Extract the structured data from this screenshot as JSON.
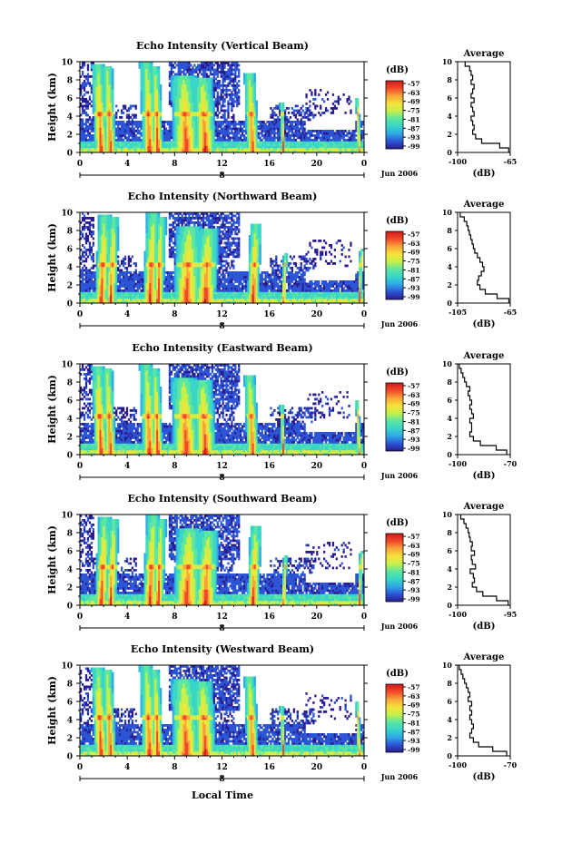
{
  "figure": {
    "xlabel_bottom": "Local Time",
    "date_label": "Jun 2006",
    "colorbar_unit": "(dB)",
    "colorbar_ticks": [
      "-57",
      "-63",
      "-69",
      "-75",
      "-81",
      "-87",
      "-93",
      "-99"
    ],
    "colormap": [
      "#2a1b8f",
      "#2c55d6",
      "#2fa9e6",
      "#39d6c8",
      "#5de6a0",
      "#c8f04a",
      "#f6e23a",
      "#f9a43a",
      "#f1482a",
      "#d01a1a"
    ]
  },
  "chart_data": [
    {
      "type": "heatmap",
      "title": "Echo Intensity (Vertical Beam)",
      "ylabel": "Height (km)",
      "ylim": [
        0,
        10
      ],
      "xlim": [
        0,
        24
      ],
      "x_ticks": [
        "0",
        "4",
        "8",
        "12",
        "16",
        "20",
        "0"
      ],
      "date_tick": "8",
      "y_ticks": [
        "0",
        "2",
        "4",
        "6",
        "8",
        "10"
      ],
      "profile": {
        "title": "Average",
        "xlabel": "(dB)",
        "xlim": [
          -100,
          -65
        ],
        "x_ticks": [
          "-100",
          "-65"
        ],
        "heights": [
          0,
          0.5,
          1,
          1.5,
          2,
          2.5,
          3,
          3.5,
          4,
          4.5,
          5,
          5.5,
          6,
          6.5,
          7,
          7.5,
          8,
          8.5,
          9,
          9.5
        ],
        "values": [
          -66,
          -72,
          -84,
          -88,
          -90,
          -89,
          -90,
          -91,
          -89,
          -90,
          -91,
          -89,
          -91,
          -90,
          -89,
          -91,
          -90,
          -91,
          -92,
          -95
        ]
      }
    },
    {
      "type": "heatmap",
      "title": "Echo Intensity (Northward Beam)",
      "ylabel": "Height (km)",
      "ylim": [
        0,
        10
      ],
      "xlim": [
        0,
        24
      ],
      "x_ticks": [
        "0",
        "4",
        "8",
        "12",
        "16",
        "20",
        "0"
      ],
      "date_tick": "8",
      "y_ticks": [
        "0",
        "2",
        "4",
        "6",
        "8",
        "10"
      ],
      "profile": {
        "title": "Average",
        "xlabel": "(dB)",
        "xlim": [
          -105,
          -65
        ],
        "x_ticks": [
          "-105",
          "-65"
        ],
        "heights": [
          0,
          0.5,
          1,
          1.5,
          2,
          2.5,
          3,
          3.5,
          4,
          4.5,
          5,
          5.5,
          6,
          6.5,
          7,
          7.5,
          8,
          8.5,
          9,
          9.5
        ],
        "values": [
          -66,
          -75,
          -84,
          -88,
          -90,
          -89,
          -87,
          -85,
          -86,
          -88,
          -90,
          -92,
          -93,
          -94,
          -95,
          -96,
          -97,
          -98,
          -100,
          -103
        ]
      }
    },
    {
      "type": "heatmap",
      "title": "Echo Intensity (Eastward Beam)",
      "ylabel": "Height (km)",
      "ylim": [
        0,
        10
      ],
      "xlim": [
        0,
        24
      ],
      "x_ticks": [
        "0",
        "4",
        "8",
        "12",
        "16",
        "20",
        "0"
      ],
      "date_tick": "8",
      "y_ticks": [
        "0",
        "2",
        "4",
        "6",
        "8",
        "10"
      ],
      "profile": {
        "title": "Average",
        "xlabel": "(dB)",
        "xlim": [
          -100,
          -70
        ],
        "x_ticks": [
          "-100",
          "-70"
        ],
        "heights": [
          0,
          0.5,
          1,
          1.5,
          2,
          2.5,
          3,
          3.5,
          4,
          4.5,
          5,
          5.5,
          6,
          6.5,
          7,
          7.5,
          8,
          8.5,
          9,
          9.5
        ],
        "values": [
          -72,
          -78,
          -87,
          -91,
          -93,
          -92,
          -92,
          -93,
          -91,
          -92,
          -93,
          -92,
          -93,
          -94,
          -93,
          -95,
          -96,
          -97,
          -98,
          -99
        ]
      }
    },
    {
      "type": "heatmap",
      "title": "Echo Intensity (Southward Beam)",
      "ylabel": "Height (km)",
      "ylim": [
        0,
        10
      ],
      "xlim": [
        0,
        24
      ],
      "x_ticks": [
        "0",
        "4",
        "8",
        "12",
        "16",
        "20",
        "0"
      ],
      "date_tick": "8",
      "y_ticks": [
        "0",
        "2",
        "4",
        "6",
        "8",
        "10"
      ],
      "profile": {
        "title": "Average",
        "xlabel": "(dB)",
        "xlim": [
          -100,
          -95
        ],
        "x_ticks": [
          "-100",
          "-95"
        ],
        "heights": [
          0,
          0.5,
          1,
          1.5,
          2,
          2.5,
          3,
          3.5,
          4,
          4.5,
          5,
          5.5,
          6,
          6.5,
          7,
          7.5,
          8,
          8.5,
          9,
          9.5
        ],
        "values": [
          -95.2,
          -96.3,
          -97.6,
          -98.2,
          -98.6,
          -98.4,
          -98.5,
          -98.8,
          -98.3,
          -98.6,
          -98.7,
          -98.4,
          -98.7,
          -98.6,
          -98.8,
          -98.9,
          -99.0,
          -99.2,
          -99.4,
          -99.7
        ]
      }
    },
    {
      "type": "heatmap",
      "title": "Echo Intensity (Westward Beam)",
      "ylabel": "Height (km)",
      "ylim": [
        0,
        10
      ],
      "xlim": [
        0,
        24
      ],
      "x_ticks": [
        "0",
        "4",
        "8",
        "12",
        "16",
        "20",
        "0"
      ],
      "date_tick": "8",
      "y_ticks": [
        "0",
        "2",
        "4",
        "6",
        "8",
        "10"
      ],
      "profile": {
        "title": "Average",
        "xlabel": "(dB)",
        "xlim": [
          -100,
          -70
        ],
        "x_ticks": [
          "-100",
          "-70"
        ],
        "heights": [
          0,
          0.5,
          1,
          1.5,
          2,
          2.5,
          3,
          3.5,
          4,
          4.5,
          5,
          5.5,
          6,
          6.5,
          7,
          7.5,
          8,
          8.5,
          9,
          9.5
        ],
        "values": [
          -72,
          -80,
          -88,
          -91,
          -93,
          -92,
          -91,
          -92,
          -93,
          -92,
          -93,
          -92,
          -94,
          -93,
          -94,
          -95,
          -96,
          -97,
          -98,
          -99
        ]
      }
    }
  ]
}
